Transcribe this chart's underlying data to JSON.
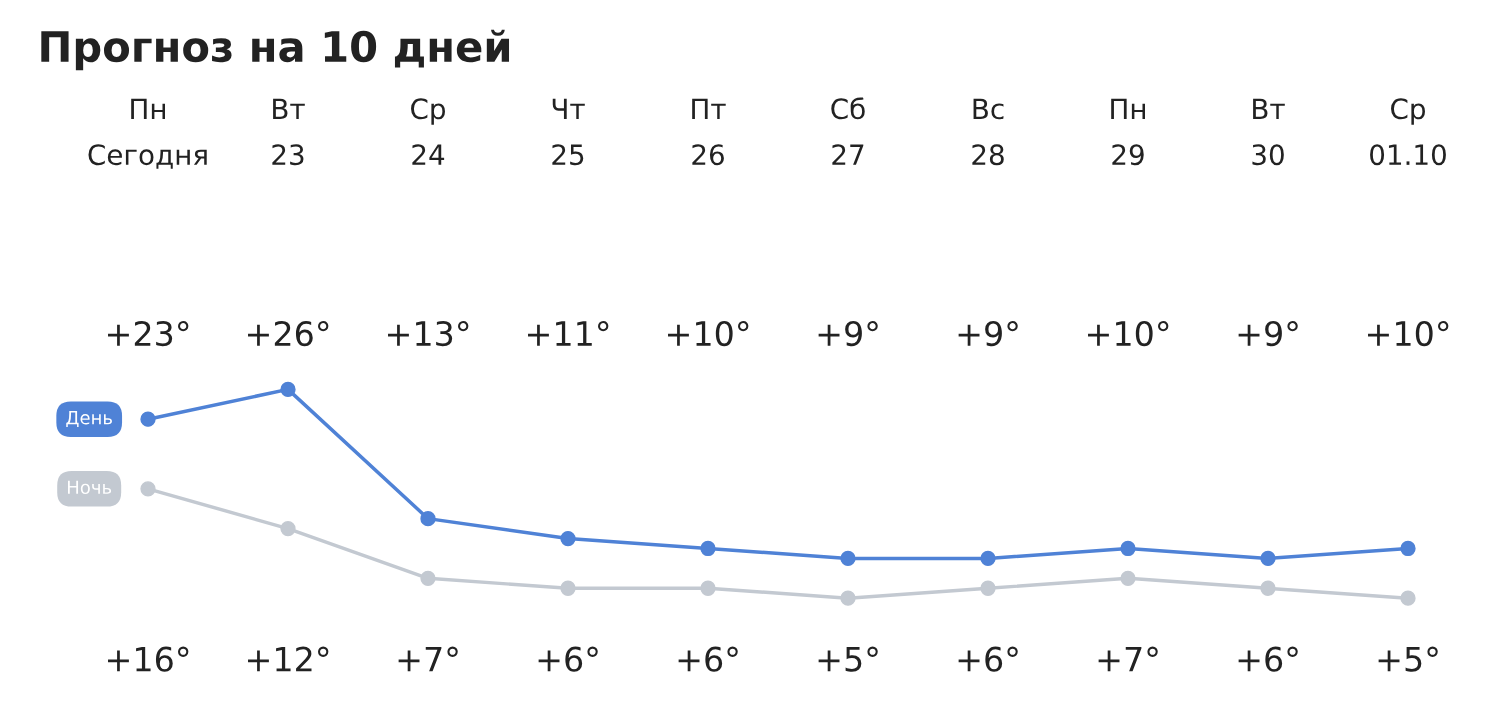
{
  "chart_data": {
    "type": "line",
    "title": "Прогноз на 10 дней",
    "categories": [
      "Пн\nСегодня",
      "Вт\n23",
      "Ср\n24",
      "Чт\n25",
      "Пт\n26",
      "Сб\n27",
      "Вс\n28",
      "Пн\n29",
      "Вт\n30",
      "Ср\n01.10"
    ],
    "marker": "circle",
    "line_style": "solid",
    "tick_labels": "x",
    "series": [
      {
        "name": "День",
        "color": "#4f82d6",
        "values": [
          23,
          26,
          13,
          11,
          10,
          9,
          9,
          10,
          9,
          10
        ],
        "value_labels": [
          "+23°",
          "+26°",
          "+13°",
          "+11°",
          "+10°",
          "+9°",
          "+9°",
          "+10°",
          "+9°",
          "+10°"
        ]
      },
      {
        "name": "Ночь",
        "color": "#c3c9d1",
        "values": [
          16,
          12,
          7,
          6,
          6,
          5,
          6,
          7,
          6,
          5
        ],
        "value_labels": [
          "+16°",
          "+12°",
          "+7°",
          "+6°",
          "+6°",
          "+5°",
          "+6°",
          "+7°",
          "+6°",
          "+5°"
        ]
      }
    ]
  }
}
